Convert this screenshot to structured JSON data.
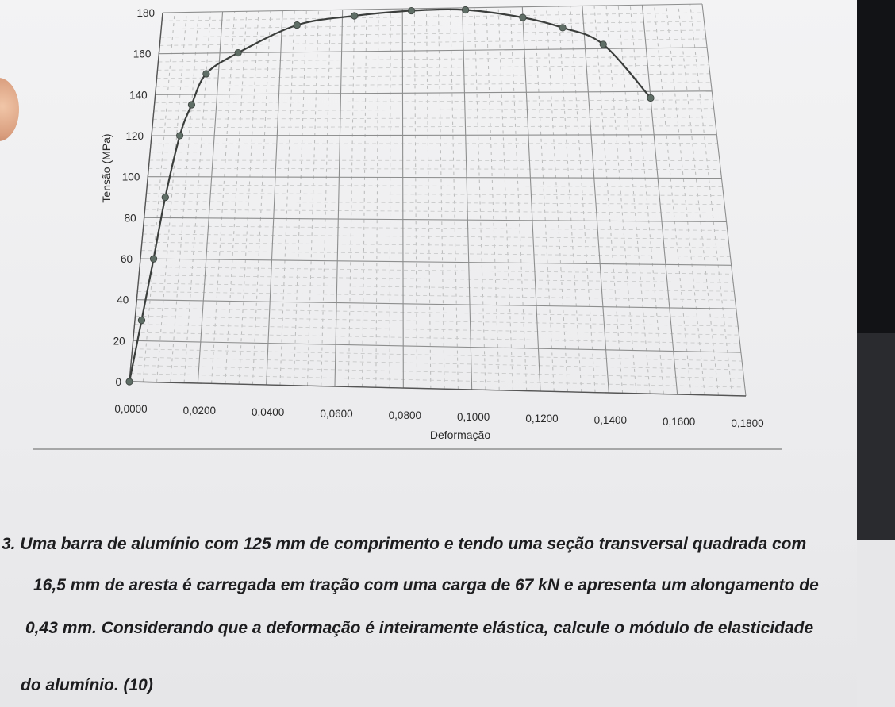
{
  "chart_data": {
    "type": "line",
    "title": "",
    "xlabel": "Deformação",
    "ylabel": "Tensão (MPa)",
    "xlim": [
      0,
      0.18
    ],
    "ylim": [
      0,
      180
    ],
    "x_ticks": [
      "0,0000",
      "0,0200",
      "0,0400",
      "0,0600",
      "0,0800",
      "0,1000",
      "0,1200",
      "0,1400",
      "0,1600",
      "0,1800"
    ],
    "y_ticks": [
      "0",
      "20",
      "40",
      "60",
      "80",
      "100",
      "120",
      "140",
      "160",
      "180"
    ],
    "grid": true,
    "line_color": "#3b3e3c",
    "marker_color": "#5f6e66",
    "series": [
      {
        "x": [
          0.0,
          0.002,
          0.004,
          0.006,
          0.009,
          0.012,
          0.016,
          0.026,
          0.045,
          0.064,
          0.083,
          0.101,
          0.12,
          0.133,
          0.146,
          0.16
        ],
        "y": [
          0,
          30,
          60,
          90,
          120,
          135,
          150,
          160,
          173,
          177,
          179,
          179,
          175,
          170,
          162,
          137
        ]
      }
    ]
  },
  "question": {
    "line1": "3.  Uma barra de alumínio com 125 mm de comprimento e tendo uma seção transversal quadrada com",
    "line2": "16,5 mm de aresta é carregada em tração com uma carga de 67 kN e apresenta um alongamento de",
    "line3": "0,43 mm. Considerando que a deformação é inteiramente elástica, calcule o módulo de elasticidade",
    "line4": "do alumínio. (10)"
  }
}
